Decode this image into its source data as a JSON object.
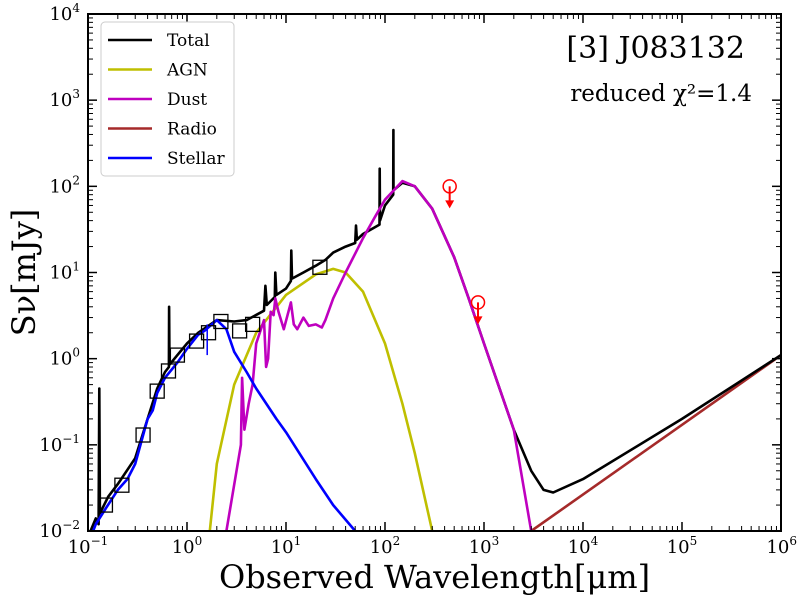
{
  "chart_data": {
    "type": "line",
    "title": "[3] J083132",
    "annotation": "reduced χ²=1.4",
    "xlabel": "Observed Wavelength[μm]",
    "ylabel": "Sν[mJy]",
    "xscale": "log",
    "yscale": "log",
    "xlim": [
      0.1,
      1000000
    ],
    "ylim": [
      0.01,
      10000
    ],
    "xticks": [
      0.1,
      1,
      10,
      100,
      1000,
      10000,
      100000,
      1000000
    ],
    "xtick_labels": [
      {
        "base": "10",
        "exp": "−1"
      },
      {
        "base": "10",
        "exp": "0"
      },
      {
        "base": "10",
        "exp": "1"
      },
      {
        "base": "10",
        "exp": "2"
      },
      {
        "base": "10",
        "exp": "3"
      },
      {
        "base": "10",
        "exp": "4"
      },
      {
        "base": "10",
        "exp": "5"
      },
      {
        "base": "10",
        "exp": "6"
      }
    ],
    "yticks": [
      0.01,
      0.1,
      1,
      10,
      100,
      1000,
      10000
    ],
    "ytick_labels": [
      {
        "base": "10",
        "exp": "−2"
      },
      {
        "base": "10",
        "exp": "−1"
      },
      {
        "base": "10",
        "exp": "0"
      },
      {
        "base": "10",
        "exp": "1"
      },
      {
        "base": "10",
        "exp": "2"
      },
      {
        "base": "10",
        "exp": "3"
      },
      {
        "base": "10",
        "exp": "4"
      }
    ],
    "grid": false,
    "legend_position": "top-left",
    "series": [
      {
        "name": "Total",
        "color": "#000000",
        "points": [
          [
            0.1,
            0.0085
          ],
          [
            0.12,
            0.014
          ],
          [
            0.128,
            0.012
          ],
          [
            0.13,
            0.45
          ],
          [
            0.132,
            0.016
          ],
          [
            0.16,
            0.025
          ],
          [
            0.2,
            0.035
          ],
          [
            0.3,
            0.07
          ],
          [
            0.4,
            0.2
          ],
          [
            0.5,
            0.45
          ],
          [
            0.6,
            0.7
          ],
          [
            0.656,
            0.8
          ],
          [
            0.66,
            4.0
          ],
          [
            0.665,
            0.85
          ],
          [
            0.8,
            1.1
          ],
          [
            1.0,
            1.5
          ],
          [
            1.3,
            2.0
          ],
          [
            2.0,
            2.8
          ],
          [
            3.0,
            2.7
          ],
          [
            4.0,
            2.8
          ],
          [
            6.0,
            3.6
          ],
          [
            6.2,
            7.0
          ],
          [
            6.4,
            4.2
          ],
          [
            7.7,
            5.2
          ],
          [
            7.8,
            10.0
          ],
          [
            8.0,
            5.5
          ],
          [
            10.0,
            6.5
          ],
          [
            11.2,
            8.0
          ],
          [
            11.3,
            18.0
          ],
          [
            11.5,
            8.5
          ],
          [
            15.0,
            10.0
          ],
          [
            20.0,
            12.0
          ],
          [
            25.0,
            14.0
          ],
          [
            30.0,
            17.0
          ],
          [
            40.0,
            20.0
          ],
          [
            50.0,
            22.0
          ],
          [
            51.0,
            35.0
          ],
          [
            52.0,
            24.0
          ],
          [
            60.0,
            28.0
          ],
          [
            88.0,
            36.0
          ],
          [
            88.5,
            160.0
          ],
          [
            89.0,
            40.0
          ],
          [
            100.0,
            60.0
          ],
          [
            121.0,
            80.0
          ],
          [
            121.5,
            450.0
          ],
          [
            122.0,
            90.0
          ],
          [
            150.0,
            110.0
          ],
          [
            200.0,
            100.0
          ],
          [
            300.0,
            55.0
          ],
          [
            500.0,
            15.0
          ],
          [
            700.0,
            5.0
          ],
          [
            1000.0,
            1.5
          ],
          [
            2000.0,
            0.15
          ],
          [
            3000.0,
            0.05
          ],
          [
            4000.0,
            0.03
          ],
          [
            5000.0,
            0.028
          ],
          [
            10000.0,
            0.04
          ],
          [
            100000.0,
            0.2
          ],
          [
            1000000.0,
            1.1
          ]
        ]
      },
      {
        "name": "AGN",
        "color": "#bfbf00",
        "points": [
          [
            1.7,
            0.01
          ],
          [
            2.0,
            0.06
          ],
          [
            3.0,
            0.5
          ],
          [
            5.0,
            2.0
          ],
          [
            10.0,
            5.5
          ],
          [
            20.0,
            9.5
          ],
          [
            30.0,
            11.0
          ],
          [
            40.0,
            10.0
          ],
          [
            60.0,
            6.0
          ],
          [
            100.0,
            1.5
          ],
          [
            150.0,
            0.3
          ],
          [
            200.0,
            0.08
          ],
          [
            300.0,
            0.01
          ]
        ]
      },
      {
        "name": "Dust",
        "color": "#bf00bf",
        "points": [
          [
            2.5,
            0.01
          ],
          [
            3.5,
            0.1
          ],
          [
            3.6,
            0.6
          ],
          [
            3.8,
            0.15
          ],
          [
            4.2,
            0.3
          ],
          [
            4.6,
            0.5
          ],
          [
            5.0,
            1.5
          ],
          [
            6.0,
            2.8
          ],
          [
            6.3,
            0.8
          ],
          [
            6.6,
            1.0
          ],
          [
            7.0,
            3.5
          ],
          [
            7.5,
            3.2
          ],
          [
            7.8,
            5.0
          ],
          [
            8.4,
            3.5
          ],
          [
            9.5,
            2.2
          ],
          [
            11.2,
            4.5
          ],
          [
            12.0,
            2.5
          ],
          [
            13.0,
            2.2
          ],
          [
            15.0,
            3.0
          ],
          [
            17.0,
            2.4
          ],
          [
            20.0,
            2.5
          ],
          [
            23.0,
            2.3
          ],
          [
            25.0,
            2.8
          ],
          [
            30.0,
            5.0
          ],
          [
            40.0,
            10.0
          ],
          [
            60.0,
            25.0
          ],
          [
            80.0,
            45.0
          ],
          [
            100.0,
            70.0
          ],
          [
            150.0,
            115.0
          ],
          [
            200.0,
            100.0
          ],
          [
            300.0,
            55.0
          ],
          [
            500.0,
            15.0
          ],
          [
            700.0,
            5.0
          ],
          [
            1000.0,
            1.5
          ],
          [
            2000.0,
            0.15
          ],
          [
            3000.0,
            0.01
          ]
        ]
      },
      {
        "name": "Radio",
        "color": "#a52a2a",
        "points": [
          [
            3000.0,
            0.01
          ],
          [
            1000000.0,
            1.1
          ]
        ]
      },
      {
        "name": "Stellar",
        "color": "#0000ff",
        "points": [
          [
            0.1,
            0.007
          ],
          [
            0.12,
            0.012
          ],
          [
            0.15,
            0.018
          ],
          [
            0.2,
            0.03
          ],
          [
            0.25,
            0.04
          ],
          [
            0.3,
            0.06
          ],
          [
            0.4,
            0.2
          ],
          [
            0.45,
            0.25
          ],
          [
            0.5,
            0.4
          ],
          [
            0.6,
            0.6
          ],
          [
            0.8,
            0.9
          ],
          [
            1.0,
            1.3
          ],
          [
            1.3,
            1.9
          ],
          [
            1.5,
            2.1
          ],
          [
            2.0,
            2.8
          ],
          [
            2.5,
            2.2
          ],
          [
            3.0,
            1.2
          ],
          [
            4.0,
            0.7
          ],
          [
            5.0,
            0.45
          ],
          [
            8.0,
            0.2
          ],
          [
            10.0,
            0.14
          ],
          [
            20.0,
            0.04
          ],
          [
            30.0,
            0.02
          ],
          [
            50.0,
            0.01
          ]
        ]
      }
    ],
    "observed_points": [
      [
        0.15,
        0.02
      ],
      [
        0.22,
        0.034
      ],
      [
        0.36,
        0.13
      ],
      [
        0.5,
        0.42
      ],
      [
        0.65,
        0.72
      ],
      [
        0.8,
        1.1
      ],
      [
        1.25,
        1.6
      ],
      [
        1.65,
        2.0
      ],
      [
        2.2,
        2.7
      ],
      [
        3.4,
        2.1
      ],
      [
        4.6,
        2.5
      ],
      [
        22.0,
        11.5
      ]
    ],
    "error_bar": {
      "x": 1.6,
      "y": 1.7,
      "ylow": 1.1,
      "yhigh": 2.5
    },
    "upper_limits": [
      [
        450.0,
        100.0
      ],
      [
        870.0,
        4.5
      ]
    ],
    "upper_limit_color": "#ff0000"
  }
}
